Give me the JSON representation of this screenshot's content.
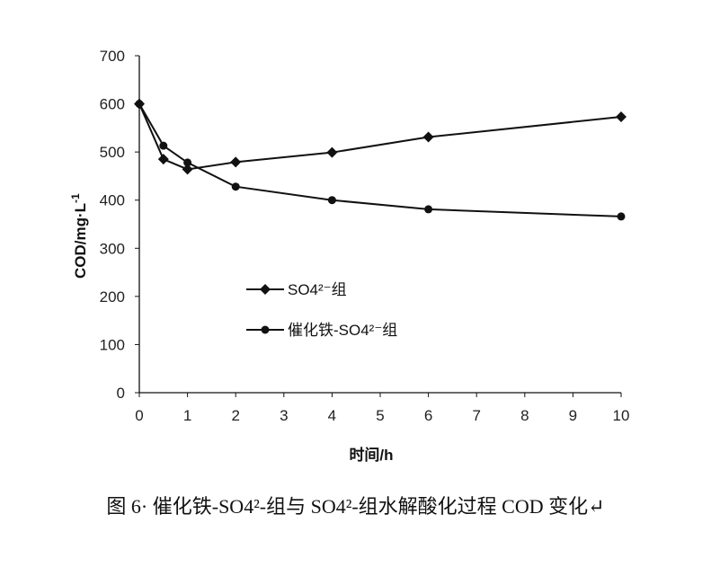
{
  "chart_data": {
    "type": "line",
    "xlabel": "时间/h",
    "ylabel": "COD/mg·L",
    "ylabel_sup": "-1",
    "xlim": [
      0,
      10
    ],
    "ylim": [
      0,
      700
    ],
    "xticks": [
      "0",
      "1",
      "2",
      "3",
      "4",
      "5",
      "6",
      "7",
      "8",
      "9",
      "10"
    ],
    "yticks": [
      "0",
      "100",
      "200",
      "300",
      "400",
      "500",
      "600",
      "700"
    ],
    "grid": false,
    "legend_position": "center-left",
    "series": [
      {
        "name": "SO4²⁻组",
        "marker": "diamond",
        "x": [
          0,
          0.5,
          1,
          2,
          4,
          6,
          10
        ],
        "y": [
          600,
          485,
          464,
          479,
          499,
          531,
          573
        ]
      },
      {
        "name": "催化铁-SO4²⁻组",
        "marker": "circle",
        "x": [
          0,
          0.5,
          1,
          2,
          4,
          6,
          10
        ],
        "y": [
          600,
          513,
          478,
          428,
          400,
          381,
          366
        ]
      }
    ],
    "caption": "图 6· 催化铁-SO4²-组与 SO4²-组水解酸化过程 COD 变化↵"
  }
}
